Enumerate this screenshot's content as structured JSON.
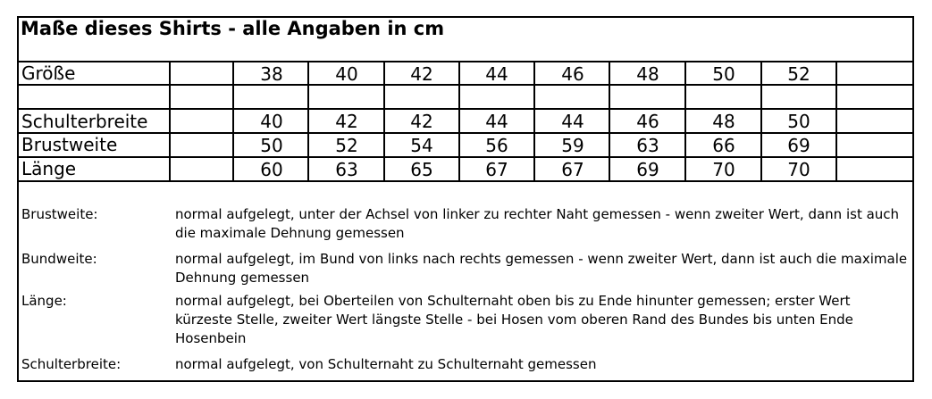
{
  "title": "Maße dieses Shirts - alle Angaben in cm",
  "table": {
    "rows": [
      {
        "label": "Größe",
        "values": [
          "38",
          "40",
          "42",
          "44",
          "46",
          "48",
          "50",
          "52"
        ]
      },
      {
        "label": "",
        "values": [
          "",
          "",
          "",
          "",
          "",
          "",
          "",
          ""
        ]
      },
      {
        "label": "Schulterbreite",
        "values": [
          "40",
          "42",
          "42",
          "44",
          "44",
          "46",
          "48",
          "50"
        ]
      },
      {
        "label": "Brustweite",
        "values": [
          "50",
          "52",
          "54",
          "56",
          "59",
          "63",
          "66",
          "69"
        ]
      },
      {
        "label": "Länge",
        "values": [
          "60",
          "63",
          "65",
          "67",
          "67",
          "69",
          "70",
          "70"
        ]
      }
    ]
  },
  "notes": [
    {
      "term": "Brustweite:",
      "text": "normal aufgelegt, unter der Achsel von linker zu rechter Naht gemessen - wenn zweiter Wert, dann ist auch die maximale Dehnung gemessen"
    },
    {
      "term": "Bundweite:",
      "text": "normal aufgelegt, im Bund von links nach rechts gemessen - wenn zweiter Wert, dann ist auch die maximale Dehnung gemessen"
    },
    {
      "term": "Länge:",
      "text": "normal aufgelegt, bei Oberteilen von Schulternaht oben bis zu Ende hinunter gemessen; erster Wert kürzeste Stelle, zweiter Wert längste Stelle - bei Hosen vom oberen Rand des Bundes bis unten Ende Hosenbein"
    },
    {
      "term": "Schulterbreite:",
      "text": "normal aufgelegt, von Schulternaht zu Schulternaht gemessen"
    }
  ]
}
